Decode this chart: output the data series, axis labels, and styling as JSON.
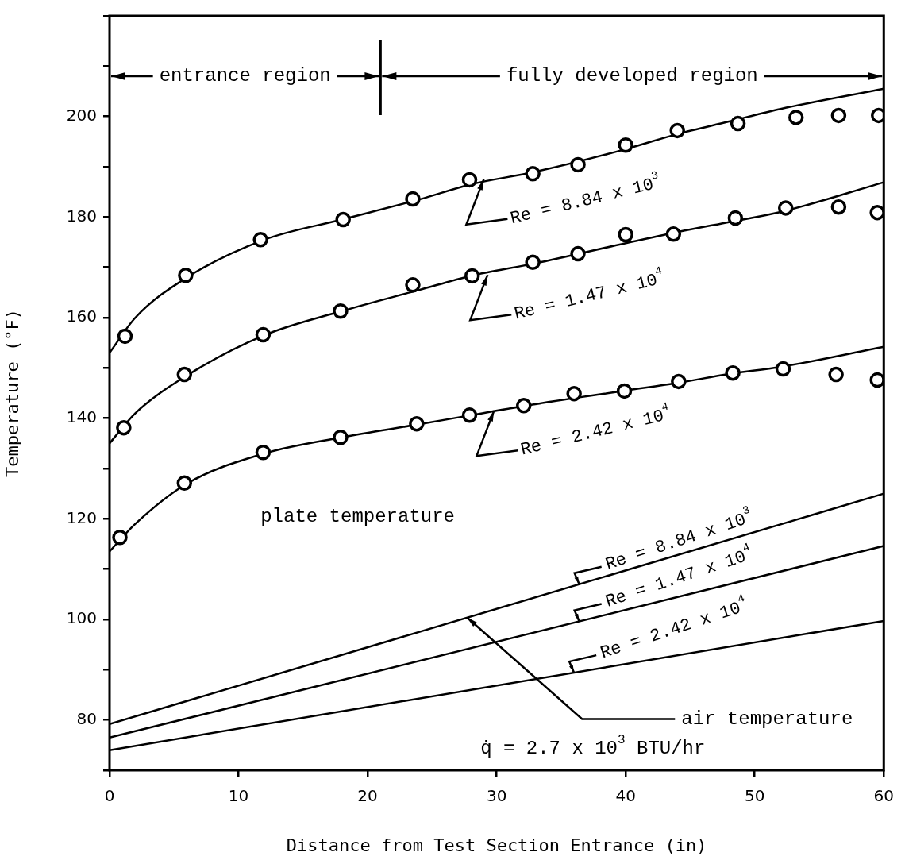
{
  "chart_data": {
    "type": "line",
    "xlabel": "Distance from Test Section Entrance (in)",
    "ylabel": "Temperature (°F)",
    "xlim": [
      0,
      60
    ],
    "xticks": [
      0,
      10,
      20,
      30,
      40,
      50,
      60
    ],
    "ylim": [
      70,
      220
    ],
    "yticks": [
      {
        "value": 70,
        "label": null
      },
      80,
      {
        "value": 90,
        "label": null
      },
      100,
      {
        "value": 110,
        "label": null
      },
      120,
      {
        "value": 130,
        "label": null
      },
      140,
      {
        "value": 150,
        "label": null
      },
      160,
      {
        "value": 170,
        "label": null
      },
      180,
      {
        "value": 190,
        "label": null
      },
      200,
      {
        "value": 210,
        "label": null
      },
      {
        "value": 220,
        "label": null
      }
    ],
    "grid": false,
    "legend": false,
    "line_style": "solid",
    "series": [
      {
        "type": "scatter",
        "marker": "circle",
        "color": "#000000",
        "x": [
          1.2,
          5.9,
          11.7,
          18.1,
          23.5,
          27.9,
          32.8,
          36.3,
          40.0,
          44.0,
          48.7,
          53.2,
          56.5,
          59.6
        ],
        "values": [
          156.3,
          168.4,
          175.5,
          179.5,
          183.6,
          187.4,
          188.6,
          190.4,
          194.3,
          197.2,
          198.6,
          199.8,
          200.2,
          200.2
        ]
      },
      {
        "type": "scatter",
        "marker": "circle",
        "color": "#000000",
        "x": [
          1.1,
          5.8,
          11.9,
          17.9,
          23.5,
          28.1,
          32.8,
          36.3,
          40.0,
          43.7,
          48.5,
          52.4,
          56.5,
          59.5
        ],
        "values": [
          138.1,
          148.7,
          156.6,
          161.3,
          166.5,
          168.3,
          171.0,
          172.7,
          176.5,
          176.6,
          179.8,
          181.8,
          182.0,
          180.9
        ]
      },
      {
        "type": "scatter",
        "marker": "circle",
        "color": "#000000",
        "x": [
          0.8,
          5.8,
          11.9,
          17.9,
          23.8,
          27.9,
          32.1,
          36.0,
          39.9,
          44.1,
          48.3,
          52.2,
          56.3,
          59.5
        ],
        "values": [
          116.3,
          127.1,
          133.2,
          136.2,
          138.9,
          140.6,
          142.5,
          144.9,
          145.4,
          147.3,
          149.0,
          149.8,
          148.7,
          147.6
        ]
      },
      {
        "type": "line",
        "color": "#000000",
        "x": [
          0,
          2,
          6,
          12,
          18,
          24,
          28,
          33,
          40,
          44,
          48,
          52,
          60
        ],
        "values": [
          153,
          160,
          168,
          175.5,
          179.5,
          183.5,
          186.5,
          189,
          193.5,
          196.5,
          199,
          201.5,
          205.5
        ]
      },
      {
        "type": "line",
        "color": "#000000",
        "x": [
          0,
          2,
          6,
          12,
          18,
          24,
          28,
          33,
          40,
          44,
          48,
          52,
          60
        ],
        "values": [
          135,
          141,
          148.5,
          156.5,
          161.3,
          165.5,
          168.3,
          170.8,
          174.8,
          177,
          179,
          181,
          186.9
        ]
      },
      {
        "type": "line",
        "color": "#000000",
        "x": [
          0,
          2,
          6,
          12,
          18,
          24,
          28,
          33,
          40,
          44,
          48,
          52,
          60
        ],
        "values": [
          113.5,
          119,
          127,
          133,
          136.2,
          138.8,
          140.6,
          142.8,
          145.5,
          147,
          148.8,
          150.2,
          154.2
        ]
      },
      {
        "type": "line",
        "color": "#000000",
        "x": [
          0,
          60
        ],
        "values": [
          79.2,
          125
        ]
      },
      {
        "type": "line",
        "color": "#000000",
        "x": [
          0,
          60
        ],
        "values": [
          76.5,
          114.6
        ]
      },
      {
        "type": "line",
        "color": "#000000",
        "x": [
          0,
          60
        ],
        "values": [
          74,
          99.7
        ]
      }
    ],
    "ref_lines": [
      {
        "axis": "x",
        "value": 21
      }
    ],
    "annotations": [
      "plate temperature",
      "q̇ = 2.7 x 10$^{3}$ BTU/hr",
      {
        "text": "entrance region",
        "x": 21,
        "y": 208
      },
      {
        "text": "fully developed region",
        "x": 21,
        "y": 208
      },
      {
        "text": "air temperature",
        "x": 27.7,
        "y": 100.4
      },
      {
        "text": "Re = 8.84 x 10$^{3}$",
        "x": 29,
        "y": 187.5
      },
      {
        "text": "Re = 1.47 x 10$^{4}$",
        "x": 29.3,
        "y": 168.5
      },
      {
        "text": "Re = 2.42 x 10$^{4}$",
        "x": 29.8,
        "y": 141.5
      },
      {
        "text": "Re = 8.84 x 10$^{3}$",
        "x": 36.4,
        "y": 107
      },
      {
        "text": "Re = 1.47 x 10$^{4}$",
        "x": 36.4,
        "y": 99.6
      },
      {
        "text": "Re = 2.42 x 10$^{4}$",
        "x": 36,
        "y": 89.4
      }
    ]
  }
}
